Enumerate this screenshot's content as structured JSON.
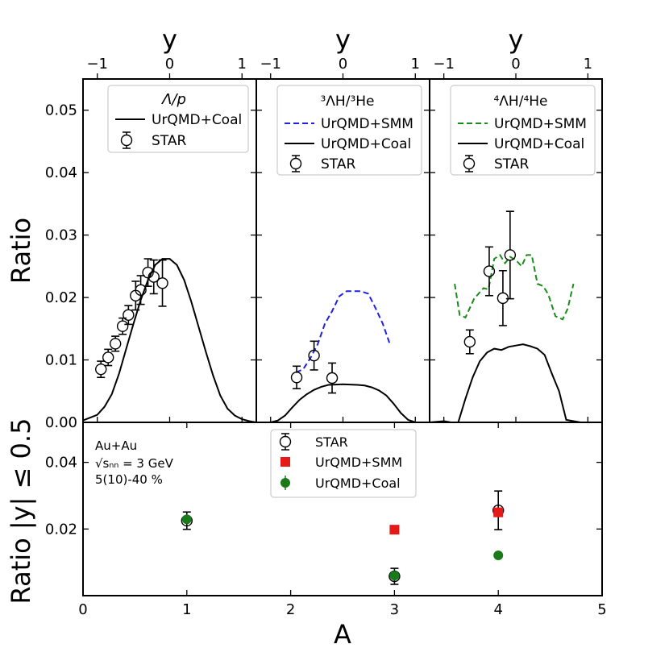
{
  "chart_data": {
    "type": "line",
    "top_row": {
      "xlabel_top": "y",
      "ylabel": "Ratio",
      "xlim": [
        -1,
        1
      ],
      "ylim": [
        0,
        0.055
      ],
      "xticks": [
        -1,
        0,
        1
      ],
      "xtick_labels": [
        "−1",
        "0",
        "1"
      ],
      "yticks": [
        0.01,
        0.02,
        0.03,
        0.04,
        0.05
      ],
      "ytick_labels": [
        "0.01",
        "0.02",
        "0.03",
        "0.04",
        "0.05"
      ],
      "panels": [
        {
          "legend_title": "Λ/p",
          "legend": [
            "UrQMD+Coal",
            "STAR"
          ],
          "series": [
            {
              "name": "UrQMD+Coal",
              "color": "#000000",
              "dash": "solid",
              "x": [
                -1.2,
                -1.0,
                -0.9,
                -0.8,
                -0.7,
                -0.6,
                -0.5,
                -0.4,
                -0.3,
                -0.2,
                -0.1,
                0.0,
                0.1,
                0.2,
                0.3,
                0.4,
                0.5,
                0.6,
                0.7,
                0.8,
                0.9,
                1.0,
                1.1,
                1.2
              ],
              "y": [
                0.0003,
                0.0012,
                0.0025,
                0.0045,
                0.0078,
                0.0118,
                0.0158,
                0.0196,
                0.0228,
                0.0252,
                0.0262,
                0.0262,
                0.0252,
                0.0228,
                0.0193,
                0.0153,
                0.0113,
                0.0075,
                0.0043,
                0.0022,
                0.0011,
                0.0005,
                0.0002,
                0.0
              ]
            }
          ],
          "star": {
            "x": [
              -0.95,
              -0.85,
              -0.75,
              -0.65,
              -0.57,
              -0.47,
              -0.4,
              -0.3,
              -0.22,
              -0.1
            ],
            "y": [
              0.0085,
              0.0104,
              0.0126,
              0.0154,
              0.0172,
              0.0203,
              0.0212,
              0.024,
              0.0233,
              0.0223
            ],
            "err": [
              0.0013,
              0.0013,
              0.0012,
              0.0013,
              0.0015,
              0.0023,
              0.0023,
              0.0022,
              0.0027,
              0.0037
            ]
          }
        },
        {
          "legend_title": "³ΛH/³He",
          "legend": [
            "UrQMD+SMM",
            "UrQMD+Coal",
            "STAR"
          ],
          "series": [
            {
              "name": "UrQMD+SMM",
              "color": "#1f1fe6",
              "dash": "dashed",
              "x": [
                -0.65,
                -0.55,
                -0.45,
                -0.35,
                -0.25,
                -0.15,
                -0.05,
                0.05,
                0.15,
                0.25,
                0.35,
                0.45,
                0.55,
                0.65
              ],
              "y": [
                0.008,
                0.0085,
                0.0103,
                0.0125,
                0.0158,
                0.0178,
                0.0202,
                0.021,
                0.021,
                0.021,
                0.0206,
                0.0183,
                0.0158,
                0.0125
              ]
            },
            {
              "name": "UrQMD+Coal",
              "color": "#000000",
              "dash": "solid",
              "x": [
                -1.2,
                -1.0,
                -0.9,
                -0.8,
                -0.7,
                -0.6,
                -0.5,
                -0.4,
                -0.3,
                -0.2,
                0.0,
                0.2,
                0.3,
                0.4,
                0.5,
                0.6,
                0.7,
                0.8,
                0.9,
                1.0,
                1.2
              ],
              "y": [
                0.0,
                0.0,
                0.0003,
                0.0011,
                0.0024,
                0.0036,
                0.0045,
                0.0052,
                0.0057,
                0.006,
                0.0061,
                0.006,
                0.0059,
                0.0056,
                0.0051,
                0.0043,
                0.003,
                0.0015,
                0.0004,
                0.0,
                0.0
              ]
            }
          ],
          "star": {
            "x": [
              -0.64,
              -0.4,
              -0.15
            ],
            "y": [
              0.0072,
              0.0107,
              0.0071
            ],
            "err": [
              0.0018,
              0.0023,
              0.0024
            ]
          }
        },
        {
          "legend_title": "⁴ΛH/⁴He",
          "legend": [
            "UrQMD+SMM",
            "UrQMD+Coal",
            "STAR"
          ],
          "series": [
            {
              "name": "UrQMD+SMM",
              "color": "#1a8a1a",
              "dash": "dashed",
              "x": [
                -0.85,
                -0.78,
                -0.7,
                -0.58,
                -0.45,
                -0.38,
                -0.3,
                -0.22,
                -0.15,
                -0.08,
                0.0,
                0.08,
                0.15,
                0.22,
                0.3,
                0.38,
                0.45,
                0.55,
                0.65,
                0.72,
                0.8
              ],
              "y": [
                0.0222,
                0.0172,
                0.0168,
                0.0198,
                0.0215,
                0.0213,
                0.0262,
                0.0268,
                0.0255,
                0.0265,
                0.026,
                0.025,
                0.0268,
                0.0268,
                0.0222,
                0.0218,
                0.0205,
                0.017,
                0.0165,
                0.0182,
                0.0222
              ]
            },
            {
              "name": "UrQMD+Coal",
              "color": "#000000",
              "dash": "solid",
              "x": [
                -1.2,
                -1.0,
                -0.9,
                -0.8,
                -0.7,
                -0.6,
                -0.5,
                -0.4,
                -0.3,
                -0.2,
                -0.1,
                0.0,
                0.1,
                0.2,
                0.3,
                0.4,
                0.5,
                0.6,
                0.7,
                0.8,
                0.9,
                1.0,
                1.2
              ],
              "y": [
                0.0,
                0.0002,
                0.0,
                0.0,
                0.0038,
                0.0072,
                0.0098,
                0.0112,
                0.0118,
                0.0116,
                0.0121,
                0.0123,
                0.0125,
                0.0122,
                0.0118,
                0.0108,
                0.0078,
                0.005,
                0.0004,
                0.0002,
                0.0,
                0.0,
                0.0
              ]
            }
          ],
          "star": {
            "x": [
              -0.64,
              -0.37,
              -0.18,
              -0.08
            ],
            "y": [
              0.0129,
              0.0242,
              0.0199,
              0.0268
            ],
            "err": [
              0.0019,
              0.0039,
              0.0044,
              0.007
            ]
          }
        }
      ]
    },
    "bottom": {
      "xlabel": "A",
      "ylabel": "Ratio |y| ≤ 0.5",
      "xlim": [
        0,
        5
      ],
      "ylim": [
        0,
        0.052
      ],
      "xticks": [
        0,
        1,
        2,
        3,
        4,
        5
      ],
      "xtick_labels": [
        "0",
        "1",
        "2",
        "3",
        "4",
        "5"
      ],
      "yticks": [
        0.0,
        0.02,
        0.04
      ],
      "ytick_labels": [
        "0.00",
        "0.02",
        "0.04"
      ],
      "annotation": [
        "Au+Au",
        "√sₙₙ = 3 GeV",
        "5(10)-40 %"
      ],
      "legend": [
        "STAR",
        "UrQMD+SMM",
        "UrQMD+Coal"
      ],
      "star": {
        "x": [
          1,
          3,
          4
        ],
        "y": [
          0.0225,
          0.0058,
          0.0256
        ],
        "err": [
          0.0026,
          0.0024,
          0.0058
        ]
      },
      "smm": {
        "x": [
          3,
          4
        ],
        "y": [
          0.0198,
          0.025
        ],
        "color": "#e61919"
      },
      "coal": {
        "x": [
          1,
          3,
          4
        ],
        "y": [
          0.0229,
          0.006,
          0.0121
        ],
        "color": "#1a7a1a"
      }
    }
  }
}
